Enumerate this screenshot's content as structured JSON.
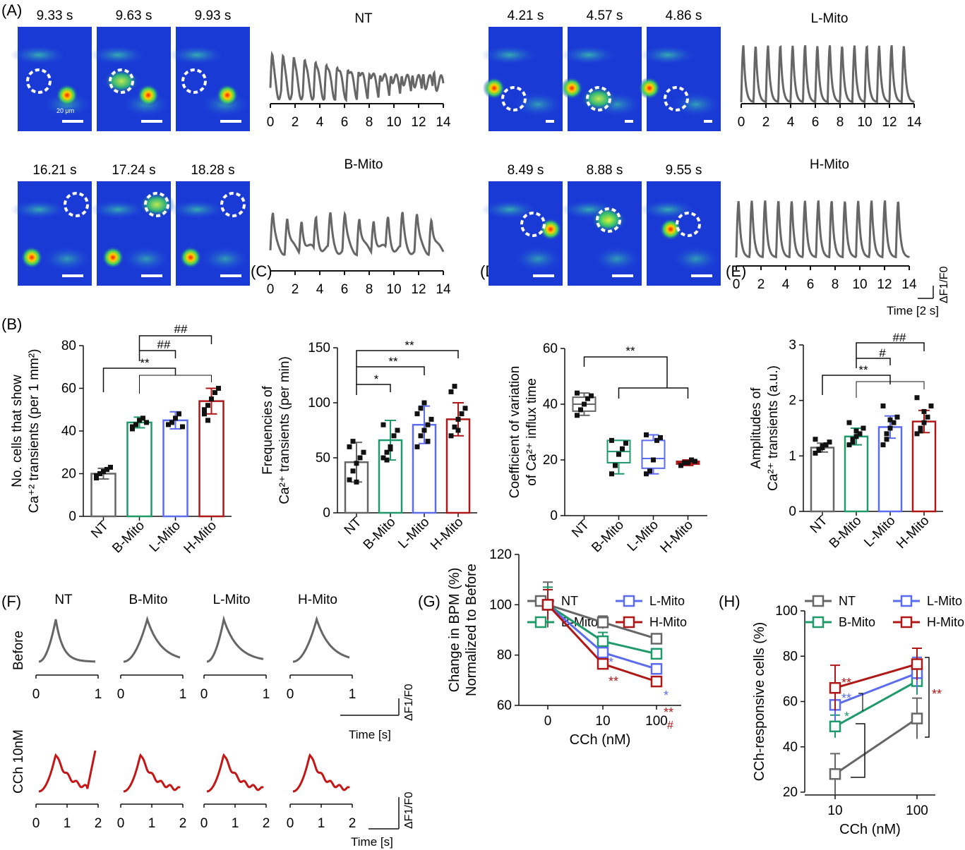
{
  "panel_labels": [
    "(A)",
    "(B)",
    "(C)",
    "(D)",
    "(E)",
    "(F)",
    "(G)",
    "(H)"
  ],
  "colors": {
    "NT": "#666666",
    "B-Mito": "#1f9a6a",
    "L-Mito": "#5b6cf0",
    "H-Mito": "#b01818",
    "CCh": "#c41616"
  },
  "panelA": {
    "groups": [
      {
        "name": "NT",
        "times": [
          "9.33 s",
          "9.63 s",
          "9.93 s"
        ],
        "scale_note": "20 μm"
      },
      {
        "name": "L-Mito",
        "times": [
          "4.21 s",
          "4.57 s",
          "4.86 s"
        ]
      },
      {
        "name": "B-Mito",
        "times": [
          "16.21 s",
          "17.24 s",
          "18.28 s"
        ]
      },
      {
        "name": "H-Mito",
        "times": [
          "8.49 s",
          "8.88 s",
          "9.55 s"
        ]
      }
    ],
    "trace_ticks": [
      "0",
      "2",
      "4",
      "6",
      "8",
      "10",
      "12",
      "14"
    ],
    "scalebar_y": "ΔF1/F0",
    "scalebar_x": "Time [2 s]"
  },
  "panelF": {
    "groups": [
      "NT",
      "B-Mito",
      "L-Mito",
      "H-Mito"
    ],
    "rows": [
      "Before",
      "CCh 10nM"
    ],
    "ticks_before": [
      "0",
      "1"
    ],
    "ticks_cch": [
      "0",
      "1",
      "2"
    ],
    "scalebar_y": "ΔF1/F0",
    "scalebar_x": "Time [s]"
  },
  "chart_data": [
    {
      "panel": "B",
      "type": "bar",
      "categories": [
        "NT",
        "B-Mito",
        "L-Mito",
        "H-Mito"
      ],
      "values": [
        20,
        44,
        45,
        54
      ],
      "errors": [
        2.5,
        2.5,
        4,
        6
      ],
      "ylabel_line1": "No. cells that show",
      "ylabel_line2": "Ca⁺² transients (per 1 mm²)",
      "ylim": [
        0,
        80
      ],
      "yticks": [
        "0",
        "20",
        "40",
        "60",
        "80"
      ],
      "points": [
        [
          18,
          20,
          21,
          22,
          23,
          19
        ],
        [
          42,
          43,
          45,
          46,
          44,
          41
        ],
        [
          43,
          44,
          46,
          48,
          42
        ],
        [
          50,
          52,
          55,
          58,
          60,
          48,
          45
        ]
      ],
      "annotations": [
        "**",
        "##",
        "##"
      ]
    },
    {
      "panel": "C",
      "type": "bar",
      "categories": [
        "NT",
        "B-Mito",
        "L-Mito",
        "H-Mito"
      ],
      "values": [
        46,
        66,
        80,
        85
      ],
      "errors": [
        18,
        18,
        17,
        15
      ],
      "ylabel_line1": "Frequencies of",
      "ylabel_line2": "Ca²⁺ transients  (per min)",
      "ylim": [
        0,
        150
      ],
      "yticks": [
        "0",
        "50",
        "100",
        "150"
      ],
      "points": [
        [
          30,
          38,
          45,
          50,
          55,
          60,
          65,
          28
        ],
        [
          50,
          55,
          60,
          70,
          75,
          80,
          48,
          58
        ],
        [
          60,
          70,
          75,
          80,
          85,
          90,
          95,
          100,
          65
        ],
        [
          70,
          78,
          85,
          90,
          95,
          110,
          115,
          75
        ]
      ],
      "annotations": [
        "*",
        "**",
        "**"
      ]
    },
    {
      "panel": "D",
      "type": "box",
      "categories": [
        "NT",
        "B-Mito",
        "L-Mito",
        "H-Mito"
      ],
      "boxes": [
        {
          "min": 36,
          "q1": 37.5,
          "median": 40,
          "q3": 42.5,
          "max": 44
        },
        {
          "min": 15,
          "q1": 19,
          "median": 23,
          "q3": 27,
          "max": 27
        },
        {
          "min": 15,
          "q1": 17,
          "median": 20.5,
          "q3": 27,
          "max": 29
        },
        {
          "min": 18,
          "q1": 18.5,
          "median": 19,
          "q3": 19.5,
          "max": 20
        }
      ],
      "ylabel_line1": "Coefficient of variation",
      "ylabel_line2": "of Ca²⁺ influx time",
      "ylim": [
        0,
        60
      ],
      "yticks": [
        "0",
        "20",
        "40",
        "60"
      ],
      "points": [
        [
          36,
          38,
          40,
          42,
          43,
          44
        ],
        [
          15,
          18,
          22,
          24,
          26,
          27
        ],
        [
          15,
          16,
          20,
          27,
          28,
          29
        ],
        [
          18,
          19,
          19,
          20,
          19.5
        ]
      ],
      "annotations": [
        "**"
      ]
    },
    {
      "panel": "E",
      "type": "bar",
      "categories": [
        "NT",
        "B-Mito",
        "L-Mito",
        "H-Mito"
      ],
      "values": [
        1.15,
        1.35,
        1.52,
        1.62
      ],
      "errors": [
        0.08,
        0.15,
        0.2,
        0.2
      ],
      "ylabel_line1": "Amplitudes of",
      "ylabel_line2": "Ca²⁺ transients  (a.u.)",
      "ylim": [
        0,
        3
      ],
      "yticks": [
        "0",
        "1",
        "2",
        "3"
      ],
      "points": [
        [
          1.05,
          1.1,
          1.15,
          1.2,
          1.25,
          1.3,
          1.12,
          1.18
        ],
        [
          1.2,
          1.3,
          1.35,
          1.4,
          1.5,
          1.6,
          1.25,
          1.45
        ],
        [
          1.2,
          1.4,
          1.5,
          1.6,
          1.7,
          1.9,
          1.3,
          1.65
        ],
        [
          1.4,
          1.5,
          1.6,
          1.7,
          1.9,
          2.05,
          1.45,
          1.8
        ]
      ],
      "annotations": [
        "**",
        "#",
        "##"
      ]
    },
    {
      "panel": "G",
      "type": "line",
      "x": [
        "0",
        "10",
        "100"
      ],
      "series": [
        {
          "name": "NT",
          "values": [
            100,
            93,
            86.5
          ],
          "errors": [
            9,
            2.5,
            1.5
          ]
        },
        {
          "name": "B-Mito",
          "values": [
            100,
            85.5,
            80.5
          ],
          "errors": [
            7,
            3.5,
            2
          ]
        },
        {
          "name": "L-Mito",
          "values": [
            100,
            81,
            74.5
          ],
          "errors": [
            6,
            2,
            2
          ]
        },
        {
          "name": "H-Mito",
          "values": [
            100,
            76.5,
            69.5
          ],
          "errors": [
            6,
            1.5,
            1.5
          ]
        }
      ],
      "ylabel_line1": "Change in BPM (%)",
      "ylabel_line2": "Normalized to Before",
      "xlabel": "CCh (nM)",
      "ylim": [
        60,
        120
      ],
      "yticks": [
        "60",
        "80",
        "100",
        "120"
      ],
      "annotations": [
        "*",
        "**",
        "*",
        "**",
        "#"
      ]
    },
    {
      "panel": "H",
      "type": "line",
      "x": [
        "10",
        "100"
      ],
      "series": [
        {
          "name": "NT",
          "values": [
            28,
            52.5
          ],
          "errors": [
            9,
            9
          ]
        },
        {
          "name": "B-Mito",
          "values": [
            49,
            69
          ],
          "errors": [
            5,
            6
          ]
        },
        {
          "name": "L-Mito",
          "values": [
            58.5,
            72.5
          ],
          "errors": [
            7,
            7
          ]
        },
        {
          "name": "H-Mito",
          "values": [
            66,
            76.5
          ],
          "errors": [
            10,
            7
          ]
        }
      ],
      "ylabel": "CCh-responsive cells (%)",
      "xlabel": "CCh (nM)",
      "ylim": [
        20,
        100
      ],
      "yticks": [
        "20",
        "40",
        "60",
        "80",
        "100"
      ],
      "annotations": [
        "**",
        "**",
        "*",
        "**"
      ]
    }
  ]
}
